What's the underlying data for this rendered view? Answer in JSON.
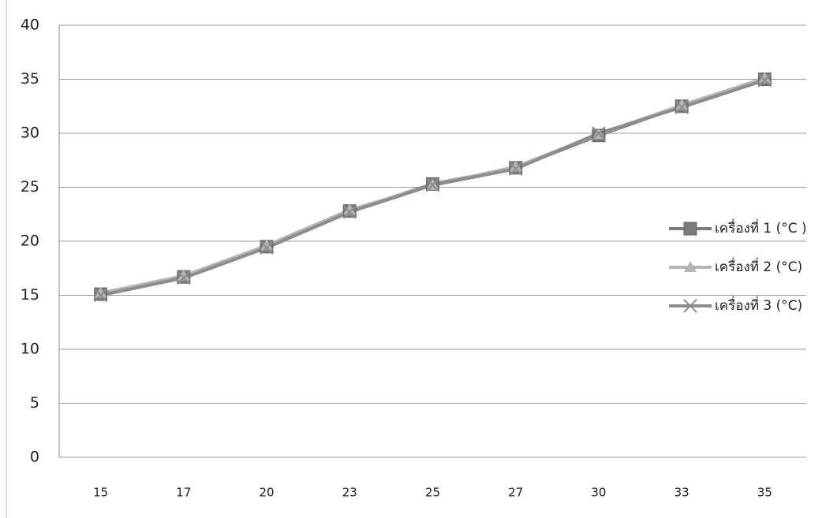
{
  "chart_data": {
    "type": "line",
    "categories": [
      "15",
      "17",
      "20",
      "23",
      "25",
      "27",
      "30",
      "33",
      "35"
    ],
    "series": [
      {
        "name": "เครื่องที่ 1 (°C )",
        "color": "#7a7a7a",
        "marker": "square",
        "values": [
          15.1,
          16.7,
          19.5,
          22.8,
          25.3,
          26.8,
          29.8,
          32.5,
          35.0
        ]
      },
      {
        "name": "เครื่องที่ 2 (°C)",
        "color": "#b4b4b4",
        "marker": "triangle",
        "values": [
          15.2,
          16.8,
          19.6,
          22.9,
          25.2,
          26.9,
          29.9,
          32.6,
          35.1
        ]
      },
      {
        "name": "เครื่องที่ 3 (°C)",
        "color": "#8c8c8c",
        "marker": "x",
        "values": [
          15.0,
          16.6,
          19.4,
          22.7,
          25.2,
          26.7,
          30.0,
          32.4,
          34.9
        ]
      }
    ],
    "ylim": [
      0,
      40
    ],
    "yticks": [
      0,
      5,
      10,
      15,
      20,
      25,
      30,
      35,
      40
    ],
    "grid": true,
    "legend": "right"
  }
}
